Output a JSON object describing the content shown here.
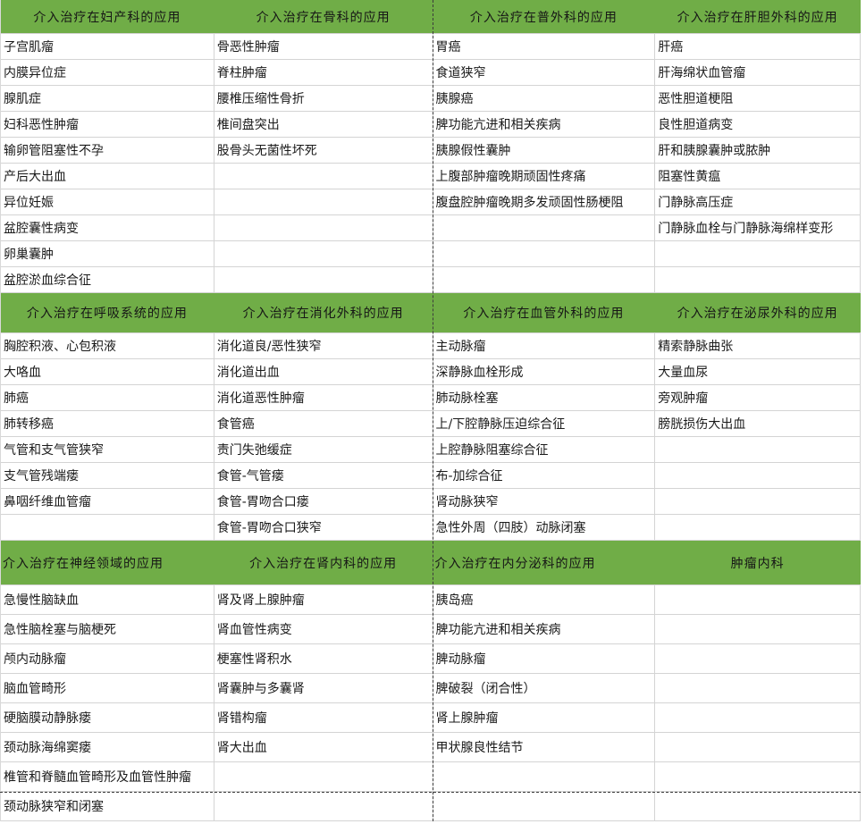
{
  "colors": {
    "header_bg": "#70AD47",
    "grid_line": "#D4D4D4",
    "text": "#1A1A1A",
    "page_break_line": "#3C3C3C"
  },
  "sections": [
    {
      "row_count": 10,
      "columns": [
        {
          "header": "介入治疗在妇产科的应用",
          "header_align": "center",
          "items": [
            "子宫肌瘤",
            "内膜异位症",
            "腺肌症",
            "妇科恶性肿瘤",
            "输卵管阻塞性不孕",
            "产后大出血",
            "异位妊娠",
            "盆腔囊性病变",
            "卵巢囊肿",
            "盆腔淤血综合征"
          ]
        },
        {
          "header": "介入治疗在骨科的应用",
          "header_align": "center",
          "items": [
            "骨恶性肿瘤",
            "脊柱肿瘤",
            "腰椎压缩性骨折",
            "椎间盘突出",
            "股骨头无菌性坏死",
            "",
            "",
            "",
            "",
            ""
          ]
        },
        {
          "header": "介入治疗在普外科的应用",
          "header_align": "center",
          "items": [
            "胃癌",
            "食道狭窄",
            "胰腺癌",
            "脾功能亢进和相关疾病",
            "胰腺假性囊肿",
            "上腹部肿瘤晚期顽固性疼痛",
            "腹盘腔肿瘤晚期多发顽固性肠梗阻",
            "",
            "",
            ""
          ]
        },
        {
          "header": "介入治疗在肝胆外科的应用",
          "header_align": "center",
          "items": [
            "肝癌",
            "肝海绵状血管瘤",
            "恶性胆道梗阻",
            "良性胆道病变",
            "肝和胰腺囊肿或脓肿",
            "阻塞性黄瘟",
            "门静脉高压症",
            "门静脉血栓与门静脉海绵样变形",
            "",
            ""
          ]
        }
      ]
    },
    {
      "row_count": 8,
      "columns": [
        {
          "header": "介入治疗在呼吸系统的应用",
          "header_align": "center",
          "items": [
            "胸腔积液、心包积液",
            "大咯血",
            "肺癌",
            "肺转移癌",
            "气管和支气管狭窄",
            "支气管残端瘘",
            "鼻咽纤维血管瘤",
            ""
          ]
        },
        {
          "header": "介入治疗在消化外科的应用",
          "header_align": "center",
          "items": [
            "消化道良/恶性狭窄",
            "消化道出血",
            "消化道恶性肿瘤",
            "食管癌",
            "责门失弛缓症",
            "食管-气管瘘",
            "食管-胃吻合口瘘",
            "食管-胃吻合口狭窄"
          ]
        },
        {
          "header": "介入治疗在血管外科的应用",
          "header_align": "center",
          "items": [
            "主动脉瘤",
            "深静脉血栓形成",
            "肺动脉栓塞",
            "上/下腔静脉压迫综合征",
            "上腔静脉阻塞综合征",
            "布-加综合征",
            "肾动脉狭窄",
            "急性外周（四肢）动脉闭塞"
          ]
        },
        {
          "header": "介入治疗在泌尿外科的应用",
          "header_align": "center",
          "items": [
            "精索静脉曲张",
            "大量血尿",
            "旁观肿瘤",
            "膀胱损伤大出血",
            "",
            "",
            "",
            ""
          ]
        }
      ]
    },
    {
      "row_count": 8,
      "columns": [
        {
          "header": "介入治疗在神经领域的应用",
          "header_align": "left",
          "items": [
            "急慢性脑缺血",
            "急性脑栓塞与脑梗死",
            "颅内动脉瘤",
            "脑血管畸形",
            "硬脑膜动静脉瘘",
            "颈动脉海绵窦瘘",
            "椎管和脊髓血管畸形及血管性肿瘤",
            "颈动脉狭窄和闭塞"
          ]
        },
        {
          "header": "介入治疗在肾内科的应用",
          "header_align": "center",
          "items": [
            "肾及肾上腺肿瘤",
            "肾血管性病变",
            "梗塞性肾积水",
            "肾囊肿与多囊肾",
            "肾错构瘤",
            "肾大出血",
            "",
            ""
          ]
        },
        {
          "header": "介入治疗在内分泌科的应用",
          "header_align": "left",
          "items": [
            "胰岛癌",
            "脾功能亢进和相关疾病",
            "脾动脉瘤",
            "脾破裂（闭合性）",
            "肾上腺肿瘤",
            "甲状腺良性结节",
            "",
            ""
          ]
        },
        {
          "header": "肿瘤内科",
          "header_align": "center",
          "items": [
            "",
            "",
            "",
            "",
            "",
            "",
            "",
            ""
          ]
        }
      ]
    }
  ]
}
